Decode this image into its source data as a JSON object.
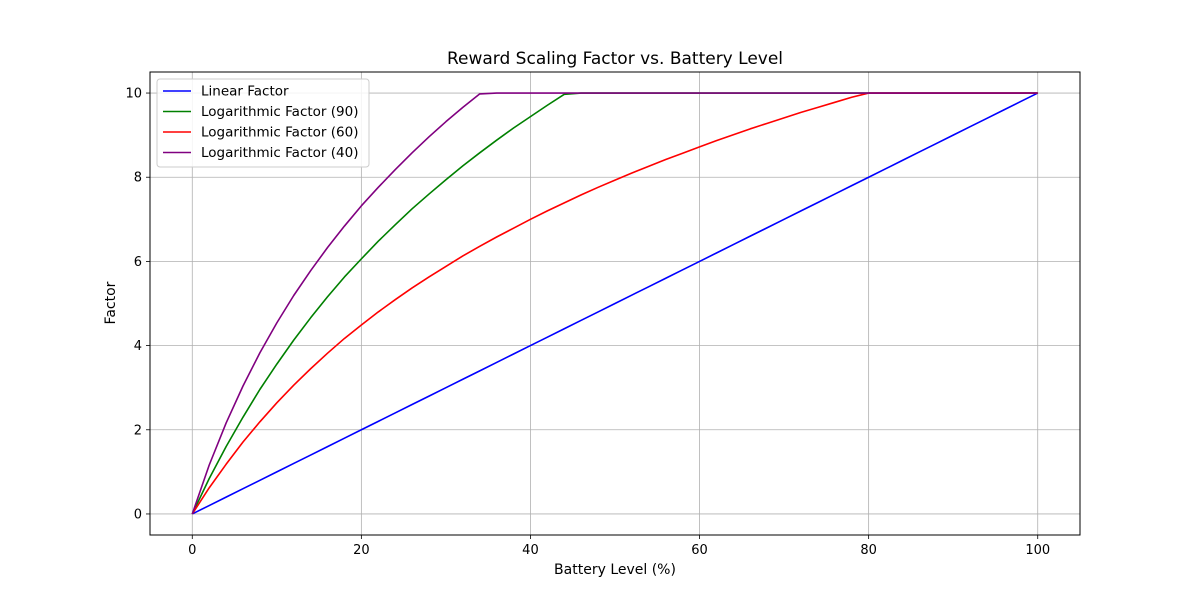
{
  "chart_data": {
    "type": "line",
    "title": "Reward Scaling Factor vs. Battery Level",
    "xlabel": "Battery Level (%)",
    "ylabel": "Factor",
    "xlim": [
      -5,
      105
    ],
    "ylim": [
      -0.5,
      10.5
    ],
    "xticks": [
      0,
      20,
      40,
      60,
      80,
      100
    ],
    "yticks": [
      0,
      2,
      4,
      6,
      8,
      10
    ],
    "grid": true,
    "legend_position": "top-left",
    "x": [
      0,
      2,
      4,
      6,
      8,
      10,
      12,
      14,
      16,
      18,
      20,
      22,
      24,
      26,
      28,
      30,
      32,
      34,
      36,
      38,
      40,
      42,
      44,
      46,
      48,
      50,
      52,
      54,
      56,
      58,
      60,
      62,
      64,
      66,
      68,
      70,
      72,
      74,
      76,
      78,
      80,
      82,
      84,
      86,
      88,
      90,
      92,
      94,
      96,
      98,
      100
    ],
    "series": [
      {
        "name": "Linear Factor",
        "color": "#0000ff",
        "values": [
          0,
          0.2,
          0.4,
          0.6,
          0.8,
          1.0,
          1.2,
          1.4,
          1.6,
          1.8,
          2.0,
          2.2,
          2.4,
          2.6,
          2.8,
          3.0,
          3.2,
          3.4,
          3.6,
          3.8,
          4.0,
          4.2,
          4.4,
          4.6,
          4.8,
          5.0,
          5.2,
          5.4,
          5.6,
          5.8,
          6.0,
          6.2,
          6.4,
          6.6,
          6.8,
          7.0,
          7.2,
          7.4,
          7.6,
          7.8,
          8.0,
          8.2,
          8.4,
          8.6,
          8.8,
          9.0,
          9.2,
          9.4,
          9.6,
          9.8,
          10.0
        ]
      },
      {
        "name": "Logarithmic Factor (90)",
        "color": "#008000",
        "values": [
          0,
          0.84,
          1.6,
          2.3,
          2.96,
          3.56,
          4.13,
          4.66,
          5.16,
          5.63,
          6.06,
          6.48,
          6.87,
          7.25,
          7.6,
          7.94,
          8.27,
          8.58,
          8.88,
          9.17,
          9.44,
          9.71,
          9.97,
          10,
          10,
          10,
          10,
          10,
          10,
          10,
          10,
          10,
          10,
          10,
          10,
          10,
          10,
          10,
          10,
          10,
          10,
          10,
          10,
          10,
          10,
          10,
          10,
          10,
          10,
          10,
          10
        ]
      },
      {
        "name": "Logarithmic Factor (60)",
        "color": "#ff0000",
        "values": [
          0,
          0.62,
          1.18,
          1.71,
          2.19,
          2.64,
          3.06,
          3.45,
          3.82,
          4.17,
          4.49,
          4.8,
          5.09,
          5.37,
          5.63,
          5.88,
          6.13,
          6.36,
          6.58,
          6.79,
          7.0,
          7.2,
          7.39,
          7.58,
          7.76,
          7.93,
          8.1,
          8.26,
          8.42,
          8.57,
          8.72,
          8.87,
          9.01,
          9.15,
          9.28,
          9.41,
          9.54,
          9.66,
          9.78,
          9.9,
          10,
          10,
          10,
          10,
          10,
          10,
          10,
          10,
          10,
          10,
          10
        ]
      },
      {
        "name": "Logarithmic Factor (40)",
        "color": "#800080",
        "values": [
          0,
          1.16,
          2.16,
          3.04,
          3.83,
          4.54,
          5.19,
          5.78,
          6.33,
          6.84,
          7.32,
          7.76,
          8.18,
          8.58,
          8.96,
          9.32,
          9.66,
          9.98,
          10,
          10,
          10,
          10,
          10,
          10,
          10,
          10,
          10,
          10,
          10,
          10,
          10,
          10,
          10,
          10,
          10,
          10,
          10,
          10,
          10,
          10,
          10,
          10,
          10,
          10,
          10,
          10,
          10,
          10,
          10,
          10,
          10
        ]
      }
    ]
  }
}
